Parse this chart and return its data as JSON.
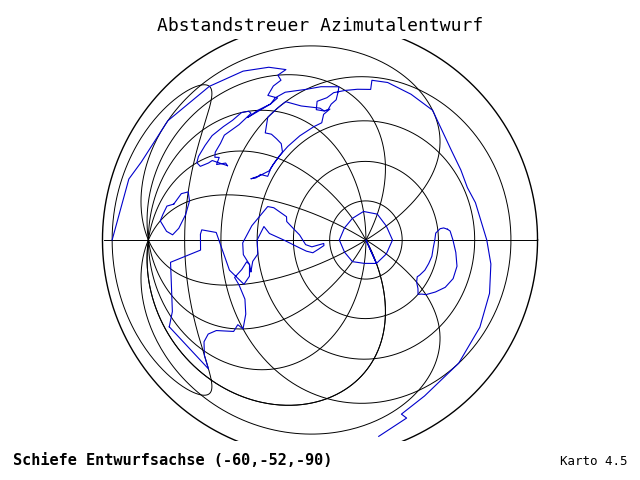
{
  "title": "Abstandstreuer Azimutalentwurf",
  "subtitle": "Schiefe Entwurfsachse (-60,-52,-90)",
  "credit": "Karto 4.5",
  "central_lon": -60,
  "central_lat": -52,
  "rotation_deg": -90,
  "title_fontsize": 13,
  "subtitle_fontsize": 11,
  "credit_fontsize": 9,
  "coastline_color": "#0000cc",
  "grid_color": "#000000",
  "boundary_color": "#000000",
  "background_color": "#ffffff",
  "coastline_linewidth": 0.8,
  "grid_linewidth": 0.7,
  "boundary_linewidth": 1.0,
  "figsize": [
    6.4,
    4.8
  ],
  "dpi": 100,
  "font_family": "monospace",
  "grid_lon_step": 30,
  "grid_lat_step": 30
}
